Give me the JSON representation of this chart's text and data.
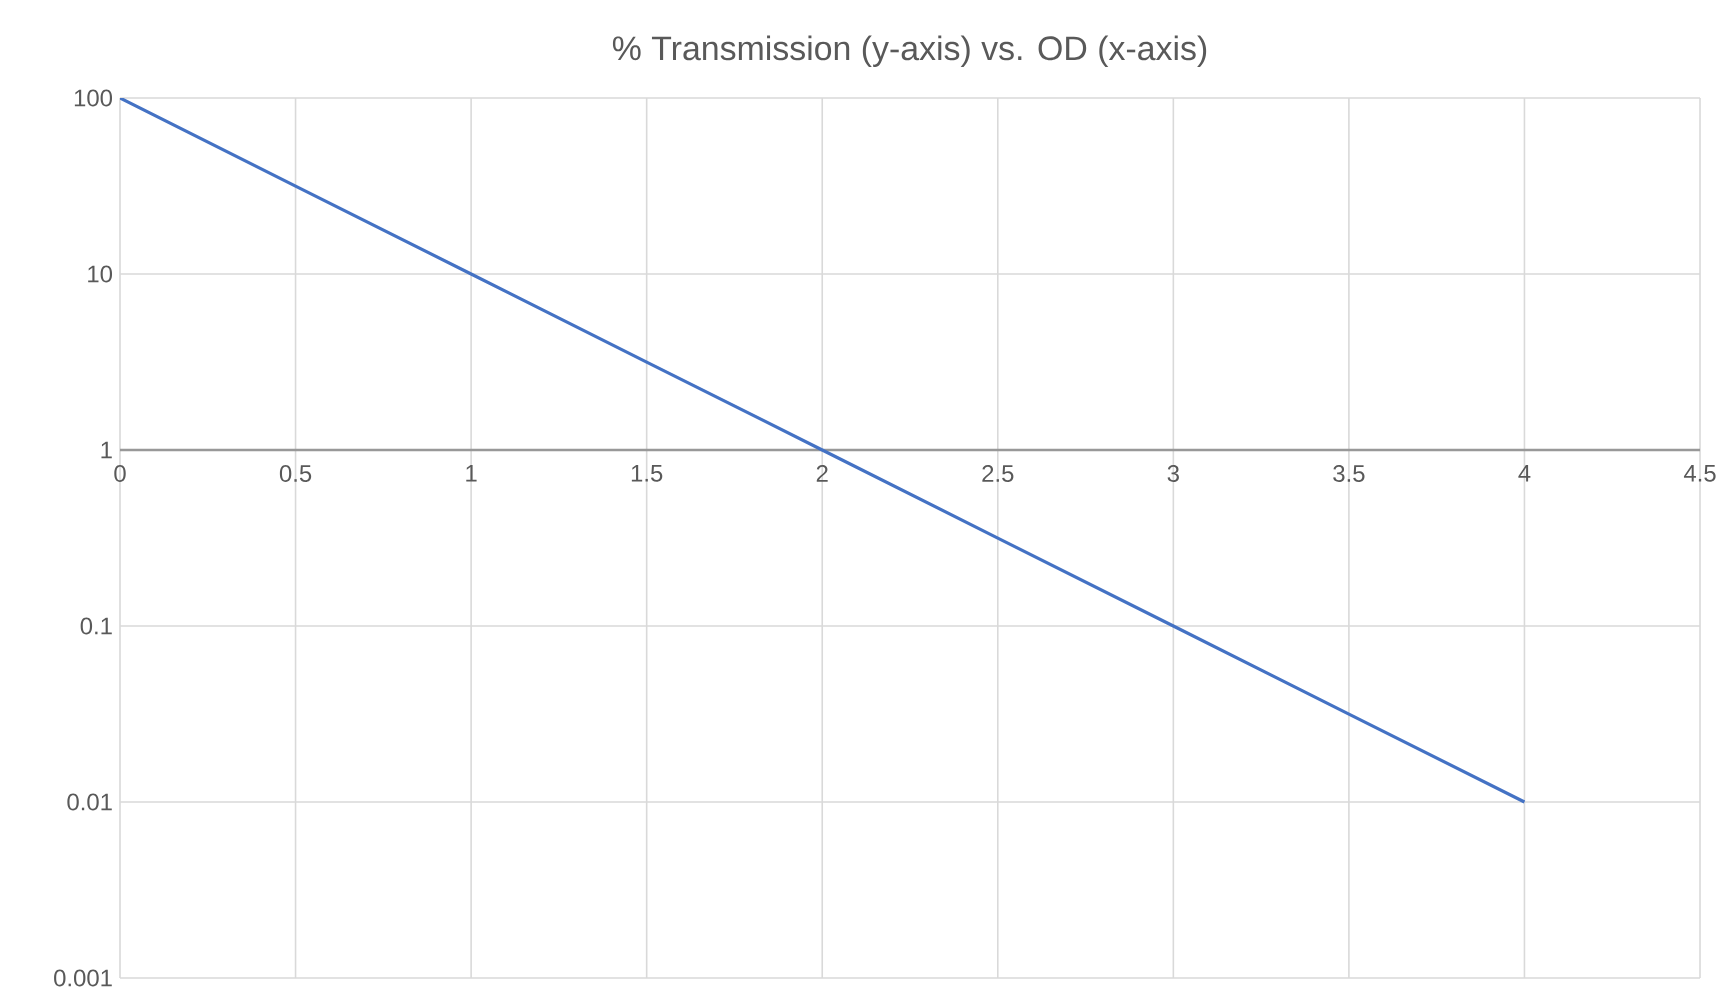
{
  "chart_data": {
    "type": "line",
    "title": "% Transmission (y-axis) vs. OD (x-axis)",
    "x": [
      0,
      0.5,
      1,
      1.5,
      2,
      2.5,
      3,
      3.5,
      4
    ],
    "series": [
      {
        "color": "#4472c4",
        "values": [
          100,
          31.6,
          10,
          3.16,
          1,
          0.316,
          0.1,
          0.0316,
          0.01
        ]
      }
    ],
    "xlim": [
      0,
      4.5
    ],
    "xticks": [
      0,
      0.5,
      1,
      1.5,
      2,
      2.5,
      3,
      3.5,
      4,
      4.5
    ],
    "ylim": [
      0.001,
      100
    ],
    "yticks": [
      0.001,
      0.01,
      0.1,
      1,
      10,
      100
    ],
    "log": "y",
    "grid": true,
    "marker": "none",
    "line_style": "solid"
  }
}
